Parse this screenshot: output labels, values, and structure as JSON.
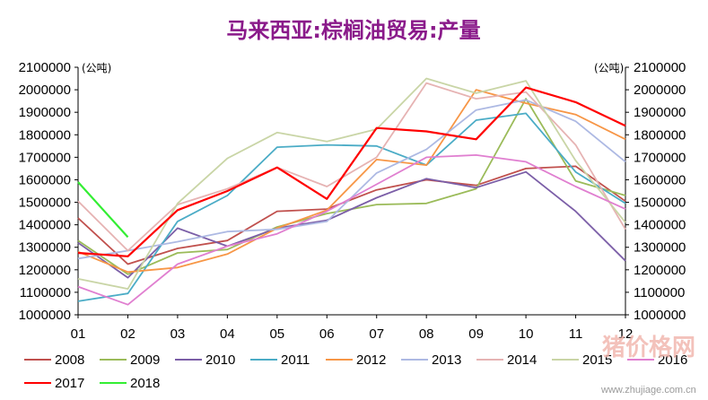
{
  "chart_data": {
    "type": "line",
    "title": "马来西亚:棕榈油贸易:产量",
    "unit_left": "(公吨)",
    "unit_right": "(公吨)",
    "categories": [
      "01",
      "02",
      "03",
      "04",
      "05",
      "06",
      "07",
      "08",
      "09",
      "10",
      "11",
      "12"
    ],
    "ylim": [
      1000000,
      2100000
    ],
    "yticks": [
      "1000000",
      "1100000",
      "1200000",
      "1300000",
      "1400000",
      "1500000",
      "1600000",
      "1700000",
      "1800000",
      "1900000",
      "2000000",
      "2100000"
    ],
    "grid": false,
    "legend_position": "bottom",
    "series": [
      {
        "name": "2008",
        "color": "#c0504d",
        "values": [
          1430000,
          1225000,
          1295000,
          1330000,
          1460000,
          1470000,
          1555000,
          1600000,
          1575000,
          1650000,
          1660000,
          1505000
        ]
      },
      {
        "name": "2009",
        "color": "#9bbb59",
        "values": [
          1330000,
          1180000,
          1275000,
          1290000,
          1390000,
          1450000,
          1490000,
          1495000,
          1560000,
          1960000,
          1595000,
          1530000
        ]
      },
      {
        "name": "2010",
        "color": "#7b5ea7",
        "values": [
          1320000,
          1165000,
          1385000,
          1305000,
          1385000,
          1420000,
          1520000,
          1605000,
          1565000,
          1635000,
          1460000,
          1240000
        ]
      },
      {
        "name": "2011",
        "color": "#4bacc6",
        "values": [
          1060000,
          1095000,
          1415000,
          1530000,
          1745000,
          1755000,
          1750000,
          1665000,
          1865000,
          1895000,
          1635000,
          1495000
        ]
      },
      {
        "name": "2012",
        "color": "#f79646",
        "values": [
          1280000,
          1190000,
          1210000,
          1270000,
          1385000,
          1465000,
          1690000,
          1665000,
          2000000,
          1940000,
          1890000,
          1780000
        ]
      },
      {
        "name": "2013",
        "color": "#adb9e3",
        "values": [
          1250000,
          1285000,
          1325000,
          1370000,
          1380000,
          1415000,
          1630000,
          1735000,
          1910000,
          1955000,
          1860000,
          1680000
        ]
      },
      {
        "name": "2014",
        "color": "#e6b3b3",
        "values": [
          1505000,
          1285000,
          1490000,
          1560000,
          1655000,
          1570000,
          1700000,
          2030000,
          1960000,
          1990000,
          1755000,
          1380000
        ]
      },
      {
        "name": "2015",
        "color": "#c9d5a6",
        "values": [
          1160000,
          1115000,
          1495000,
          1695000,
          1810000,
          1770000,
          1825000,
          2050000,
          1985000,
          2040000,
          1685000,
          1410000
        ]
      },
      {
        "name": "2016",
        "color": "#e07fd0",
        "values": [
          1125000,
          1045000,
          1225000,
          1305000,
          1360000,
          1460000,
          1580000,
          1700000,
          1710000,
          1680000,
          1570000,
          1470000
        ]
      },
      {
        "name": "2017",
        "color": "#ff0000",
        "values": [
          1275000,
          1260000,
          1465000,
          1550000,
          1655000,
          1515000,
          1830000,
          1815000,
          1780000,
          2010000,
          1945000,
          1840000
        ]
      },
      {
        "name": "2018",
        "color": "#33ee33",
        "values": [
          1590000,
          1345000,
          null,
          null,
          null,
          null,
          null,
          null,
          null,
          null,
          null,
          null
        ]
      }
    ]
  },
  "watermark": {
    "logo_text": "猪价格网",
    "url_text": "www.zhujiage.com.cn"
  }
}
